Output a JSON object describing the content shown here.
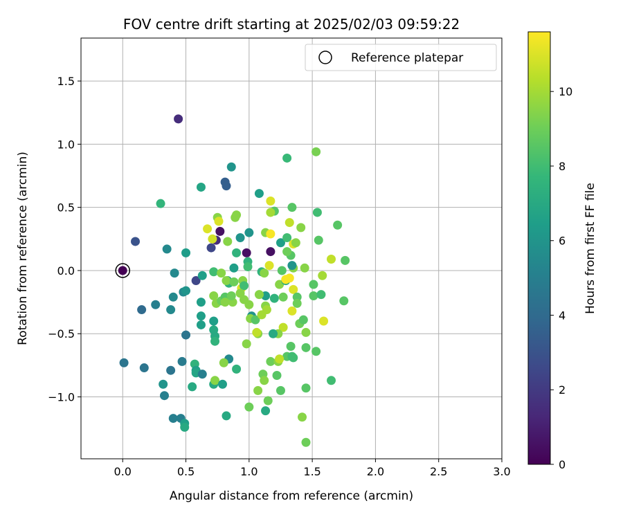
{
  "chart_data": {
    "type": "scatter",
    "title": "FOV centre drift starting at 2025/02/03 09:59:22",
    "xlabel": "Angular distance from reference (arcmin)",
    "ylabel": "Rotation from reference (arcmin)",
    "xlim": [
      -0.33,
      3.0
    ],
    "ylim": [
      -1.49,
      1.84
    ],
    "xticks": [
      0.0,
      0.5,
      1.0,
      1.5,
      2.0,
      2.5,
      3.0
    ],
    "xtick_labels": [
      "0.0",
      "0.5",
      "1.0",
      "1.5",
      "2.0",
      "2.5",
      "3.0"
    ],
    "yticks": [
      -1.0,
      -0.5,
      0.0,
      0.5,
      1.0,
      1.5
    ],
    "ytick_labels": [
      "−1.0",
      "−0.5",
      "0.0",
      "0.5",
      "1.0",
      "1.5"
    ],
    "grid": true,
    "legend": {
      "placement": "top-right",
      "entries": [
        {
          "label": "Reference platepar",
          "marker": "open-circle"
        }
      ]
    },
    "reference_point": {
      "x": 0.0,
      "y": 0.0
    },
    "colorbar": {
      "label": "Hours from first FF file",
      "colormap": "viridis",
      "range": [
        0,
        11.6
      ],
      "ticks": [
        0,
        2,
        4,
        6,
        8,
        10
      ],
      "tick_labels": [
        "0",
        "2",
        "4",
        "6",
        "8",
        "10"
      ]
    },
    "points": [
      [
        0.44,
        1.2,
        1.5
      ],
      [
        0.81,
        0.7,
        3.5
      ],
      [
        0.82,
        0.67,
        3.5
      ],
      [
        0.86,
        0.82,
        6.0
      ],
      [
        0.1,
        0.23,
        3.0
      ],
      [
        0.62,
        0.66,
        6.8
      ],
      [
        0.3,
        0.53,
        7.6
      ],
      [
        1.08,
        0.61,
        6.5
      ],
      [
        1.3,
        0.89,
        7.8
      ],
      [
        1.53,
        0.94,
        9.2
      ],
      [
        0.35,
        0.17,
        5.5
      ],
      [
        0.5,
        0.14,
        6.4
      ],
      [
        0.77,
        0.31,
        0.5
      ],
      [
        0.7,
        0.18,
        2.5
      ],
      [
        0.74,
        0.24,
        1.5
      ],
      [
        0.98,
        0.14,
        0.5
      ],
      [
        1.17,
        0.15,
        0.5
      ],
      [
        0.93,
        0.26,
        6.0
      ],
      [
        1.0,
        0.3,
        6.0
      ],
      [
        1.25,
        0.22,
        6.5
      ],
      [
        0.58,
        -0.08,
        2.5
      ],
      [
        0.41,
        -0.02,
        5.5
      ],
      [
        0.48,
        -0.17,
        5.5
      ],
      [
        0.5,
        -0.16,
        6.0
      ],
      [
        0.26,
        -0.27,
        5.0
      ],
      [
        0.4,
        -0.21,
        5.5
      ],
      [
        0.38,
        -0.31,
        5.5
      ],
      [
        0.15,
        -0.31,
        4.0
      ],
      [
        0.63,
        -0.04,
        6.5
      ],
      [
        0.62,
        -0.25,
        6.5
      ],
      [
        0.62,
        -0.36,
        6.5
      ],
      [
        0.62,
        -0.43,
        6.5
      ],
      [
        0.72,
        -0.4,
        6.5
      ],
      [
        0.72,
        -0.47,
        7.0
      ],
      [
        0.73,
        -0.52,
        7.0
      ],
      [
        0.73,
        -0.56,
        7.5
      ],
      [
        0.5,
        -0.51,
        4.5
      ],
      [
        0.01,
        -0.73,
        4.5
      ],
      [
        0.17,
        -0.77,
        4.5
      ],
      [
        0.38,
        -0.79,
        4.5
      ],
      [
        0.47,
        -0.72,
        4.8
      ],
      [
        0.32,
        -0.9,
        6.0
      ],
      [
        0.33,
        -0.99,
        5.0
      ],
      [
        0.4,
        -1.17,
        5.0
      ],
      [
        0.46,
        -1.17,
        5.0
      ],
      [
        0.49,
        -1.21,
        6.5
      ],
      [
        0.49,
        -1.24,
        7.0
      ],
      [
        0.57,
        -0.74,
        7.5
      ],
      [
        0.58,
        -0.79,
        6.5
      ],
      [
        0.58,
        -0.81,
        6.8
      ],
      [
        0.63,
        -0.82,
        5.0
      ],
      [
        0.55,
        -0.92,
        7.0
      ],
      [
        0.72,
        -0.9,
        7.0
      ],
      [
        0.73,
        -0.87,
        9.5
      ],
      [
        0.79,
        -0.9,
        6.5
      ],
      [
        0.82,
        -1.15,
        7.0
      ],
      [
        0.84,
        -0.7,
        5.5
      ],
      [
        0.8,
        -0.73,
        9.5
      ],
      [
        0.9,
        -0.78,
        7.5
      ],
      [
        0.75,
        0.42,
        9.5
      ],
      [
        0.67,
        0.33,
        11.0
      ],
      [
        0.71,
        0.25,
        10.8
      ],
      [
        0.76,
        0.39,
        11.0
      ],
      [
        0.83,
        0.23,
        9.5
      ],
      [
        0.89,
        0.42,
        9.5
      ],
      [
        0.9,
        0.44,
        9.5
      ],
      [
        0.9,
        0.14,
        7.5
      ],
      [
        0.99,
        0.07,
        7.5
      ],
      [
        0.99,
        0.03,
        8.0
      ],
      [
        0.88,
        0.02,
        6.5
      ],
      [
        0.72,
        -0.01,
        8.0
      ],
      [
        0.78,
        -0.02,
        9.5
      ],
      [
        0.83,
        -0.08,
        6.5
      ],
      [
        0.84,
        -0.1,
        7.5
      ],
      [
        0.82,
        -0.08,
        9.5
      ],
      [
        0.88,
        -0.09,
        9.0
      ],
      [
        0.95,
        -0.08,
        9.5
      ],
      [
        0.94,
        -0.14,
        11.0
      ],
      [
        0.96,
        -0.12,
        8.0
      ],
      [
        0.72,
        -0.2,
        9.5
      ],
      [
        0.74,
        -0.26,
        9.5
      ],
      [
        0.78,
        -0.24,
        9.0
      ],
      [
        0.81,
        -0.21,
        8.5
      ],
      [
        0.81,
        -0.25,
        9.5
      ],
      [
        0.87,
        -0.25,
        9.5
      ],
      [
        0.86,
        -0.2,
        9.0
      ],
      [
        0.93,
        -0.18,
        9.5
      ],
      [
        0.96,
        -0.23,
        9.5
      ],
      [
        1.0,
        -0.27,
        9.5
      ],
      [
        1.02,
        -0.36,
        6.0
      ],
      [
        1.01,
        -0.38,
        9.5
      ],
      [
        1.05,
        -0.39,
        8.5
      ],
      [
        1.1,
        -0.35,
        10.0
      ],
      [
        1.13,
        -0.28,
        9.5
      ],
      [
        1.14,
        -0.31,
        10.0
      ],
      [
        1.13,
        -0.2,
        6.5
      ],
      [
        1.08,
        -0.19,
        9.5
      ],
      [
        1.2,
        -0.22,
        7.5
      ],
      [
        1.24,
        -0.11,
        9.5
      ],
      [
        1.27,
        -0.21,
        9.0
      ],
      [
        1.29,
        -0.08,
        7.0
      ],
      [
        1.29,
        -0.07,
        11.5
      ],
      [
        1.32,
        -0.06,
        11.5
      ],
      [
        1.35,
        -0.15,
        11.0
      ],
      [
        1.34,
        -0.32,
        11.0
      ],
      [
        1.38,
        -0.21,
        8.5
      ],
      [
        1.38,
        -0.26,
        9.0
      ],
      [
        1.4,
        -0.42,
        9.0
      ],
      [
        1.43,
        -0.39,
        8.5
      ],
      [
        1.27,
        -0.45,
        10.5
      ],
      [
        1.23,
        -0.5,
        9.5
      ],
      [
        1.19,
        -0.5,
        7.0
      ],
      [
        1.07,
        -0.5,
        9.5
      ],
      [
        1.06,
        -0.49,
        10.5
      ],
      [
        0.98,
        -0.58,
        9.5
      ],
      [
        1.33,
        -0.6,
        8.5
      ],
      [
        1.3,
        -0.68,
        8.5
      ],
      [
        1.34,
        -0.68,
        8.0
      ],
      [
        1.35,
        -0.69,
        8.0
      ],
      [
        1.17,
        -0.72,
        9.0
      ],
      [
        1.23,
        -0.72,
        9.5
      ],
      [
        1.24,
        -0.7,
        10.5
      ],
      [
        1.11,
        -0.82,
        9.0
      ],
      [
        1.12,
        -0.87,
        9.5
      ],
      [
        1.22,
        -0.83,
        8.5
      ],
      [
        1.07,
        -0.95,
        9.5
      ],
      [
        1.25,
        -0.95,
        8.5
      ],
      [
        1.15,
        -1.03,
        9.0
      ],
      [
        1.13,
        -1.11,
        7.0
      ],
      [
        1.0,
        -1.08,
        9.0
      ],
      [
        1.42,
        -1.16,
        9.5
      ],
      [
        1.45,
        -1.36,
        9.0
      ],
      [
        1.45,
        -0.93,
        8.5
      ],
      [
        1.45,
        -0.61,
        8.5
      ],
      [
        1.45,
        -0.49,
        9.5
      ],
      [
        1.51,
        -0.11,
        8.5
      ],
      [
        1.51,
        -0.2,
        8.5
      ],
      [
        1.57,
        -0.19,
        8.0
      ],
      [
        1.58,
        -0.04,
        10.0
      ],
      [
        1.59,
        -0.4,
        11.0
      ],
      [
        1.53,
        -0.64,
        8.5
      ],
      [
        1.65,
        -0.87,
        8.0
      ],
      [
        1.75,
        -0.24,
        8.5
      ],
      [
        1.65,
        0.09,
        10.5
      ],
      [
        1.76,
        0.08,
        8.5
      ],
      [
        1.7,
        0.36,
        8.5
      ],
      [
        1.55,
        0.24,
        8.5
      ],
      [
        1.54,
        0.46,
        8.0
      ],
      [
        1.44,
        0.02,
        9.5
      ],
      [
        1.41,
        0.34,
        9.5
      ],
      [
        1.34,
        0.5,
        8.5
      ],
      [
        1.32,
        0.38,
        10.5
      ],
      [
        1.3,
        0.26,
        8.0
      ],
      [
        1.35,
        0.21,
        11.0
      ],
      [
        1.37,
        0.22,
        9.5
      ],
      [
        1.33,
        0.12,
        8.5
      ],
      [
        1.35,
        0.02,
        9.5
      ],
      [
        1.34,
        0.04,
        6.0
      ],
      [
        1.3,
        0.15,
        9.0
      ],
      [
        1.26,
        0.0,
        8.5
      ],
      [
        1.2,
        0.47,
        8.5
      ],
      [
        1.17,
        0.46,
        10.0
      ],
      [
        1.17,
        0.55,
        11.0
      ],
      [
        1.13,
        0.3,
        9.5
      ],
      [
        1.17,
        0.29,
        11.5
      ],
      [
        1.16,
        0.04,
        11.0
      ],
      [
        1.1,
        -0.01,
        7.5
      ],
      [
        1.12,
        -0.02,
        9.5
      ]
    ]
  }
}
